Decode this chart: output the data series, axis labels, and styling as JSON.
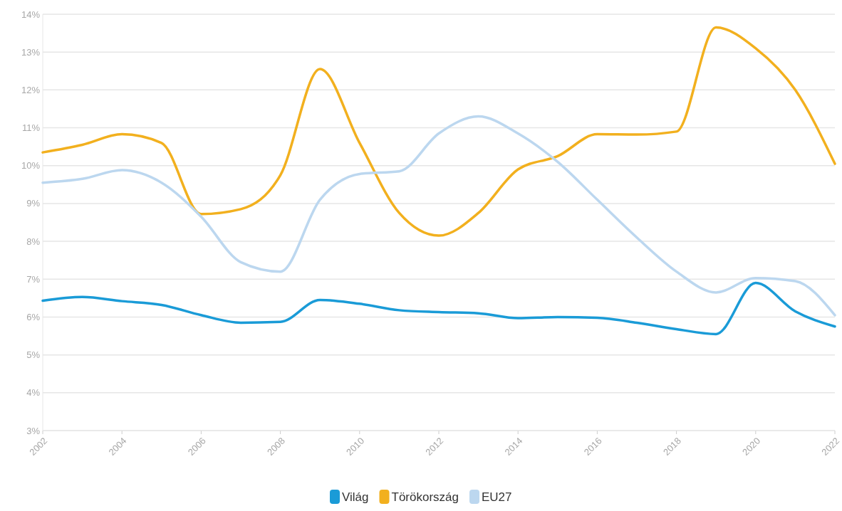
{
  "chart_data": {
    "type": "line",
    "x": [
      2002,
      2003,
      2004,
      2005,
      2006,
      2007,
      2008,
      2009,
      2010,
      2011,
      2012,
      2013,
      2014,
      2015,
      2016,
      2017,
      2018,
      2019,
      2020,
      2021,
      2022
    ],
    "series": [
      {
        "name": "Világ",
        "color": "#1a9bd7",
        "values": [
          6.43,
          6.53,
          6.42,
          6.32,
          6.05,
          5.85,
          5.87,
          6.45,
          6.35,
          6.18,
          6.13,
          6.1,
          5.97,
          6.0,
          5.98,
          5.85,
          5.68,
          5.55,
          6.9,
          6.15,
          5.75
        ]
      },
      {
        "name": "Törökország",
        "color": "#f2b01e",
        "values": [
          10.35,
          10.55,
          10.83,
          10.6,
          8.72,
          8.85,
          9.75,
          12.55,
          10.6,
          8.75,
          8.15,
          8.75,
          9.9,
          10.25,
          10.83,
          10.82,
          10.9,
          13.65,
          13.1,
          12.0,
          10.05
        ]
      },
      {
        "name": "EU27",
        "color": "#bcd7ef",
        "values": [
          9.55,
          9.65,
          9.88,
          9.55,
          8.65,
          7.45,
          7.2,
          9.1,
          9.78,
          9.85,
          10.85,
          11.3,
          10.85,
          10.1,
          9.1,
          8.1,
          7.2,
          6.65,
          7.03,
          6.95,
          6.05
        ]
      }
    ],
    "xlim": [
      2002,
      2022
    ],
    "xticks": [
      2002,
      2004,
      2006,
      2008,
      2010,
      2012,
      2014,
      2016,
      2018,
      2020,
      2022
    ],
    "ylim": [
      3,
      14
    ],
    "yticks": [
      {
        "value": 3,
        "label": "3%"
      },
      {
        "value": 4,
        "label": "4%"
      },
      {
        "value": 5,
        "label": "5%"
      },
      {
        "value": 6,
        "label": "6%"
      },
      {
        "value": 7,
        "label": "7%"
      },
      {
        "value": 8,
        "label": "8%"
      },
      {
        "value": 9,
        "label": "9%"
      },
      {
        "value": 10,
        "label": "10%"
      },
      {
        "value": 11,
        "label": "11%"
      },
      {
        "value": 12,
        "label": "12%"
      },
      {
        "value": 13,
        "label": "13%"
      },
      {
        "value": 14,
        "label": "14%"
      }
    ],
    "grid": "y",
    "legend": "bottom",
    "marker": "none",
    "line_style": "solid"
  }
}
